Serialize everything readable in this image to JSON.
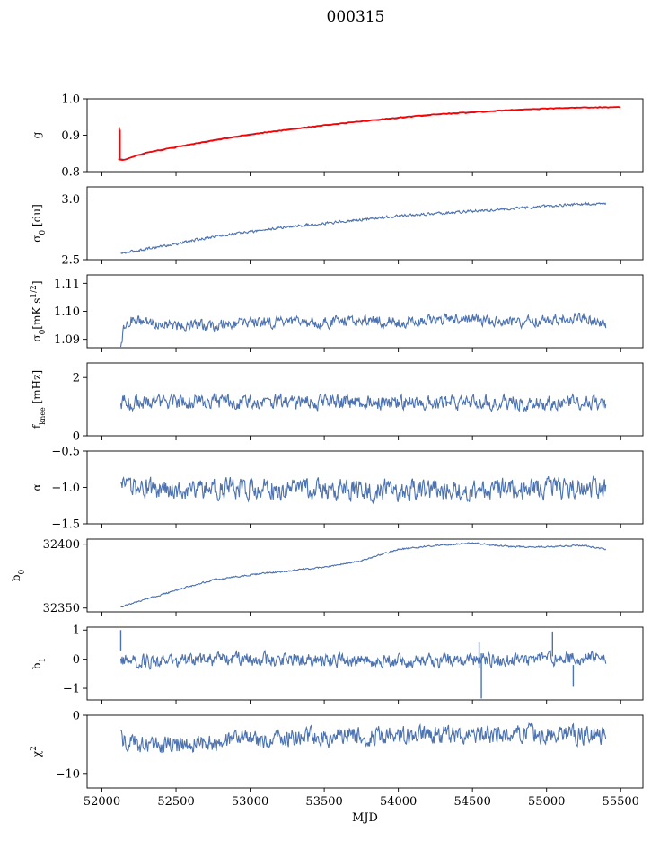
{
  "figure": {
    "title": "000315"
  },
  "chart_data": [
    {
      "type": "line",
      "ylabel_html": "g",
      "ylim": [
        0.8,
        1.0
      ],
      "yticks": [
        0.8,
        0.9,
        1.0
      ],
      "ytick_labels": [
        "0.8",
        "0.9",
        "1.0"
      ],
      "colors": {
        "main": "#4c72b0",
        "overlay": "#ff0000"
      },
      "series": [
        {
          "name": "",
          "x": [
            52127,
            52150,
            52200,
            52300,
            52500,
            52750,
            53000,
            53250,
            53500,
            53750,
            54000,
            54250,
            54500,
            54750,
            55000,
            55250,
            55400
          ],
          "y": [
            0.835,
            0.833,
            0.84,
            0.853,
            0.868,
            0.887,
            0.903,
            0.916,
            0.928,
            0.939,
            0.949,
            0.958,
            0.964,
            0.97,
            0.974,
            0.977,
            0.976
          ]
        },
        {
          "name": "",
          "x": [
            52110,
            52120,
            52127,
            52150,
            52200,
            52300,
            52500,
            52750,
            53000,
            53250,
            53500,
            53750,
            54000,
            54250,
            54500,
            54750,
            55000,
            55250,
            55400,
            55500
          ],
          "y": [
            0.835,
            0.832,
            0.833,
            0.832,
            0.839,
            0.852,
            0.867,
            0.886,
            0.902,
            0.915,
            0.927,
            0.938,
            0.948,
            0.957,
            0.963,
            0.969,
            0.973,
            0.976,
            0.977,
            0.977
          ],
          "spikes": [
            {
              "x": 52118,
              "y0": 0.835,
              "y1": 0.922
            },
            {
              "x": 52123,
              "y0": 0.835,
              "y1": 0.915
            }
          ]
        }
      ]
    },
    {
      "type": "line",
      "ylabel_html": "σ<tspan baseline-shift=\"sub\" font-size=\"9\">0</tspan> [du]",
      "ylim": [
        2.5,
        3.1
      ],
      "yticks": [
        2.5,
        3.0
      ],
      "ytick_labels": [
        "2.5",
        "3.0"
      ],
      "series": [
        {
          "name": "",
          "x": [
            52127,
            52300,
            52500,
            52750,
            53000,
            53250,
            53500,
            53750,
            54000,
            54250,
            54500,
            54750,
            55000,
            55250,
            55400
          ],
          "y": [
            2.55,
            2.59,
            2.63,
            2.69,
            2.73,
            2.77,
            2.8,
            2.83,
            2.86,
            2.88,
            2.9,
            2.92,
            2.94,
            2.96,
            2.96
          ],
          "noise": 0.006
        }
      ]
    },
    {
      "type": "line",
      "ylabel_html": "σ<tspan baseline-shift=\"sub\" font-size=\"9\">0</tspan>[mK s<tspan baseline-shift=\"super\" font-size=\"9\">1/2</tspan>]",
      "ylim": [
        1.087,
        1.113
      ],
      "yticks": [
        1.09,
        1.1,
        1.11
      ],
      "ytick_labels": [
        "1.09",
        "1.10",
        "1.11"
      ],
      "series": [
        {
          "name": "",
          "x": [
            52127,
            52150,
            52200,
            52300,
            52500,
            52750,
            53000,
            53250,
            53500,
            53750,
            54000,
            54250,
            54500,
            54750,
            55000,
            55250,
            55350,
            55400
          ],
          "y": [
            1.089,
            1.094,
            1.097,
            1.096,
            1.095,
            1.095,
            1.096,
            1.096,
            1.096,
            1.097,
            1.096,
            1.097,
            1.097,
            1.096,
            1.097,
            1.098,
            1.096,
            1.094
          ],
          "noise": 0.0011
        }
      ]
    },
    {
      "type": "line",
      "ylabel_html": "f<tspan baseline-shift=\"sub\" font-size=\"8\">knee</tspan> [mHz]",
      "ylim": [
        0,
        2.5
      ],
      "yticks": [
        0,
        2
      ],
      "ytick_labels": [
        "0",
        "2"
      ],
      "series": [
        {
          "name": "",
          "x": [
            52127,
            53000,
            54000,
            55000,
            55400
          ],
          "y": [
            1.15,
            1.17,
            1.15,
            1.13,
            1.13
          ],
          "noise": 0.14
        }
      ]
    },
    {
      "type": "line",
      "ylabel_html": "α",
      "ylim": [
        -1.5,
        -0.5
      ],
      "yticks": [
        -1.5,
        -1.0,
        -0.5
      ],
      "ytick_labels": [
        "−1.5",
        "−1.0",
        "−0.5"
      ],
      "series": [
        {
          "name": "",
          "x": [
            52127,
            53000,
            54000,
            55000,
            55400
          ],
          "y": [
            -1.02,
            -1.02,
            -1.03,
            -1.02,
            -1.0
          ],
          "noise": 0.08
        }
      ]
    },
    {
      "type": "line",
      "ylabel_html": "b<tspan baseline-shift=\"sub\" font-size=\"9\">0</tspan>",
      "ylim": [
        32347,
        32404
      ],
      "yticks": [
        32350,
        32400
      ],
      "ytick_labels": [
        "32350",
        "32400"
      ],
      "series": [
        {
          "name": "",
          "x": [
            52127,
            52300,
            52500,
            52750,
            53000,
            53250,
            53500,
            53750,
            54000,
            54250,
            54500,
            54750,
            55000,
            55250,
            55400
          ],
          "y": [
            32351,
            32357,
            32364,
            32372,
            32376,
            32379,
            32382,
            32387,
            32396,
            32399,
            32401,
            32398,
            32398,
            32399,
            32396
          ],
          "noise": 0.35
        }
      ]
    },
    {
      "type": "line",
      "ylabel_html": "b<tspan baseline-shift=\"sub\" font-size=\"9\">1</tspan>",
      "ylim": [
        -1.4,
        1.1
      ],
      "yticks": [
        -1,
        0,
        1
      ],
      "ytick_labels": [
        "−1",
        "0",
        "1"
      ],
      "series": [
        {
          "name": "",
          "x": [
            52127,
            52200,
            53000,
            54000,
            55000,
            55400
          ],
          "y": [
            0.0,
            -0.1,
            0.0,
            -0.05,
            0.0,
            0.05
          ],
          "noise": 0.13,
          "spikes": [
            {
              "x": 52127,
              "y0": 0.3,
              "y1": 1.0
            },
            {
              "x": 54560,
              "y0": 0.2,
              "y1": -1.35
            },
            {
              "x": 54545,
              "y0": -0.3,
              "y1": 0.6
            },
            {
              "x": 55040,
              "y0": 0.1,
              "y1": 0.95
            },
            {
              "x": 55180,
              "y0": -0.2,
              "y1": -0.95
            }
          ]
        }
      ]
    },
    {
      "type": "line",
      "ylabel_html": "χ<tspan baseline-shift=\"super\" font-size=\"9\">2</tspan>",
      "ylim": [
        -12.5,
        0
      ],
      "yticks": [
        -10,
        0
      ],
      "ytick_labels": [
        "−10",
        "0"
      ],
      "xlabel": "MJD",
      "xticks": [
        52000,
        52500,
        53000,
        53500,
        54000,
        54500,
        55000,
        55500
      ],
      "xtick_labels": [
        "52000",
        "52500",
        "53000",
        "53500",
        "54000",
        "54500",
        "55000",
        "55500"
      ],
      "series": [
        {
          "name": "",
          "x": [
            52127,
            52300,
            52600,
            53000,
            53500,
            54000,
            54500,
            55000,
            55400
          ],
          "y": [
            -4.0,
            -5.5,
            -5.0,
            -4.0,
            -3.8,
            -3.5,
            -3.3,
            -3.2,
            -3.4
          ],
          "noise": 0.9
        }
      ]
    }
  ],
  "shared_x": {
    "xlim": [
      51900,
      55650
    ]
  }
}
